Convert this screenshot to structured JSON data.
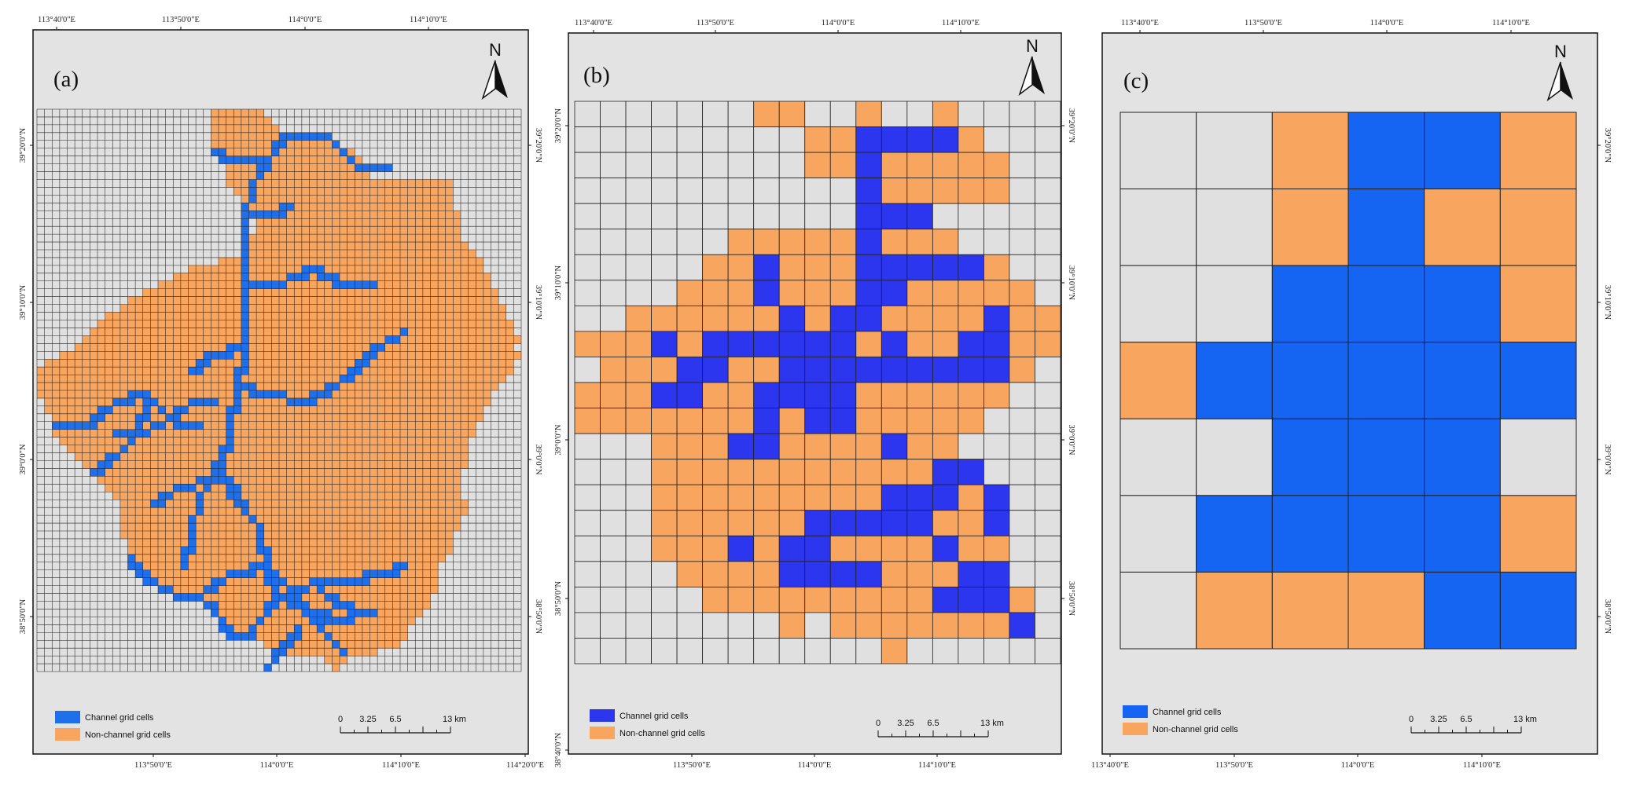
{
  "colors": {
    "channel_a": "#1f6fea",
    "channel_b": "#2b36ee",
    "channel_c": "#1565f2",
    "nonchannel": "#f7a55f",
    "background": "#e3e3e3",
    "outside_cell": "#e0e0e0",
    "grid_line": "#222222"
  },
  "legend": {
    "channel_label": "Channel grid cells",
    "nonchannel_label": "Non-channel grid cells"
  },
  "scale_bar": {
    "labels": [
      "0",
      "3.25",
      "6.5",
      "13 km"
    ]
  },
  "north_arrow": {
    "label": "N"
  },
  "panels": [
    {
      "label": "(a)",
      "top_ticks": [
        "113°40'0\"E",
        "113°50'0\"E",
        "114°0'0\"E",
        "114°10'0\"E"
      ],
      "bottom_ticks": [
        "113°50'0\"E",
        "114°0'0\"E",
        "114°10'0\"E",
        "114°20'0\"E"
      ],
      "left_ticks": [
        "39°20'0\"N",
        "39°10'0\"N",
        "39°0'0\"N",
        "38°50'0\"N"
      ],
      "right_ticks": [
        "39°20'0\"N",
        "39°10'0\"N",
        "39°0'0\"N",
        "38°50'0\"N"
      ],
      "grid": {
        "cols": 64,
        "rows": 72,
        "rows_fill": [
          [
            23,
            29
          ],
          [
            23,
            30
          ],
          [
            23,
            31
          ],
          [
            23,
            34
          ],
          [
            23,
            39
          ],
          [
            23,
            41
          ],
          [
            24,
            42
          ],
          [
            25,
            42
          ],
          [
            25,
            43
          ],
          [
            25,
            54
          ],
          [
            26,
            54
          ],
          [
            27,
            54
          ],
          [
            28,
            54
          ],
          [
            28,
            55
          ],
          [
            29,
            55
          ],
          [
            29,
            55
          ],
          [
            28,
            55
          ],
          [
            28,
            56
          ],
          [
            27,
            57
          ],
          [
            24,
            58
          ],
          [
            20,
            58
          ],
          [
            18,
            59
          ],
          [
            16,
            59
          ],
          [
            14,
            60
          ],
          [
            12,
            60
          ],
          [
            11,
            61
          ],
          [
            9,
            61
          ],
          [
            8,
            62
          ],
          [
            7,
            62
          ],
          [
            6,
            63
          ],
          [
            5,
            62
          ],
          [
            3,
            63
          ],
          [
            1,
            62
          ],
          [
            0,
            62
          ],
          [
            0,
            61
          ],
          [
            0,
            60
          ],
          [
            0,
            59
          ],
          [
            1,
            59
          ],
          [
            1,
            58
          ],
          [
            2,
            58
          ],
          [
            2,
            57
          ],
          [
            2,
            57
          ],
          [
            3,
            56
          ],
          [
            4,
            56
          ],
          [
            5,
            56
          ],
          [
            6,
            56
          ],
          [
            7,
            55
          ],
          [
            8,
            55
          ],
          [
            9,
            55
          ],
          [
            10,
            55
          ],
          [
            11,
            56
          ],
          [
            11,
            56
          ],
          [
            11,
            55
          ],
          [
            11,
            55
          ],
          [
            11,
            54
          ],
          [
            12,
            54
          ],
          [
            12,
            54
          ],
          [
            13,
            53
          ],
          [
            14,
            52
          ],
          [
            15,
            52
          ],
          [
            16,
            52
          ],
          [
            18,
            52
          ],
          [
            20,
            51
          ],
          [
            22,
            51
          ],
          [
            23,
            50
          ],
          [
            24,
            49
          ],
          [
            26,
            48
          ],
          [
            28,
            48
          ],
          [
            30,
            47
          ],
          [
            32,
            44
          ],
          [
            38,
            40
          ],
          [
            39,
            39
          ]
        ],
        "channel_cells": "rr"
      }
    },
    {
      "label": "(b)",
      "top_ticks": [
        "113°40'0\"E",
        "113°50'0\"E",
        "114°0'0\"E",
        "114°10'0\"E"
      ],
      "bottom_ticks": [
        "113°50'0\"E",
        "114°0'0\"E",
        "114°10'0\"E"
      ],
      "left_ticks": [
        "39°20'0\"N",
        "39°10'0\"N",
        "39°0'0\"N",
        "38°50'0\"N",
        "38°40'0\"N"
      ],
      "right_ticks": [
        "39°20'0\"N",
        "39°10'0\"N",
        "39°0'0\"N",
        "38°50'0\"N"
      ],
      "grid": {
        "cols": 19,
        "rows": 22
      }
    },
    {
      "label": "(c)",
      "top_ticks": [
        "113°40'0\"E",
        "113°50'0\"E",
        "114°0'0\"E",
        "114°10'0\"E"
      ],
      "bottom_ticks": [
        "113°40'0\"E",
        "113°50'0\"E",
        "114°0'0\"E",
        "114°10'0\"E"
      ],
      "left_ticks": [],
      "right_ticks": [
        "39°20'0\"N",
        "39°10'0\"N",
        "39°0'0\"N",
        "38°50'0\"N"
      ],
      "grid": {
        "cols": 6,
        "rows": 7,
        "cells": [
          "GGOCCO",
          "GGOCOO",
          "GGCCCO",
          "OCCCCC",
          "GGCCCG",
          "GCCCCO",
          "GOOOCC"
        ]
      }
    }
  ]
}
